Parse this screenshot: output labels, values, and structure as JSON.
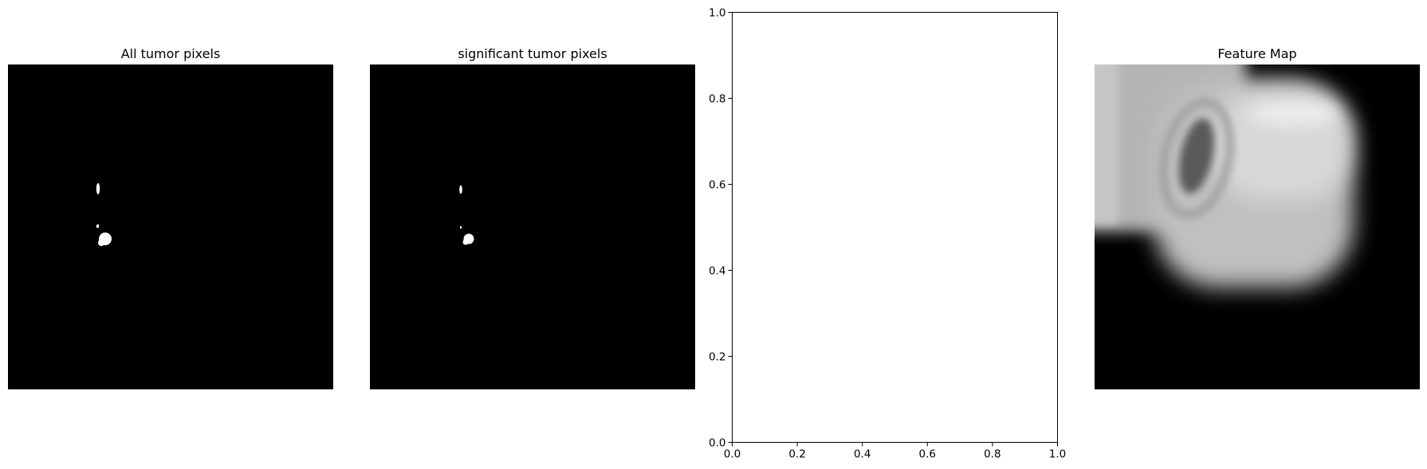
{
  "panels": [
    {
      "title": "All tumor pixels"
    },
    {
      "title": "significant tumor pixels"
    },
    {
      "title": ""
    },
    {
      "title": "Feature Map"
    }
  ],
  "chart_data": [
    {
      "type": "heatmap",
      "title": "All tumor pixels",
      "colormap": "gray",
      "axes": "off"
    },
    {
      "type": "heatmap",
      "title": "significant tumor pixels",
      "colormap": "gray",
      "axes": "off"
    },
    {
      "type": "scatter",
      "title": "",
      "xlabel": "",
      "ylabel": "",
      "xlim": [
        0.0,
        1.0
      ],
      "ylim": [
        0.0,
        1.0
      ],
      "xticks": [
        "0.0",
        "0.2",
        "0.4",
        "0.6",
        "0.8",
        "1.0"
      ],
      "yticks": [
        "0.0",
        "0.2",
        "0.4",
        "0.6",
        "0.8",
        "1.0"
      ],
      "series": [],
      "grid": false
    },
    {
      "type": "heatmap",
      "title": "Feature Map",
      "colormap": "gray",
      "axes": "off"
    }
  ]
}
